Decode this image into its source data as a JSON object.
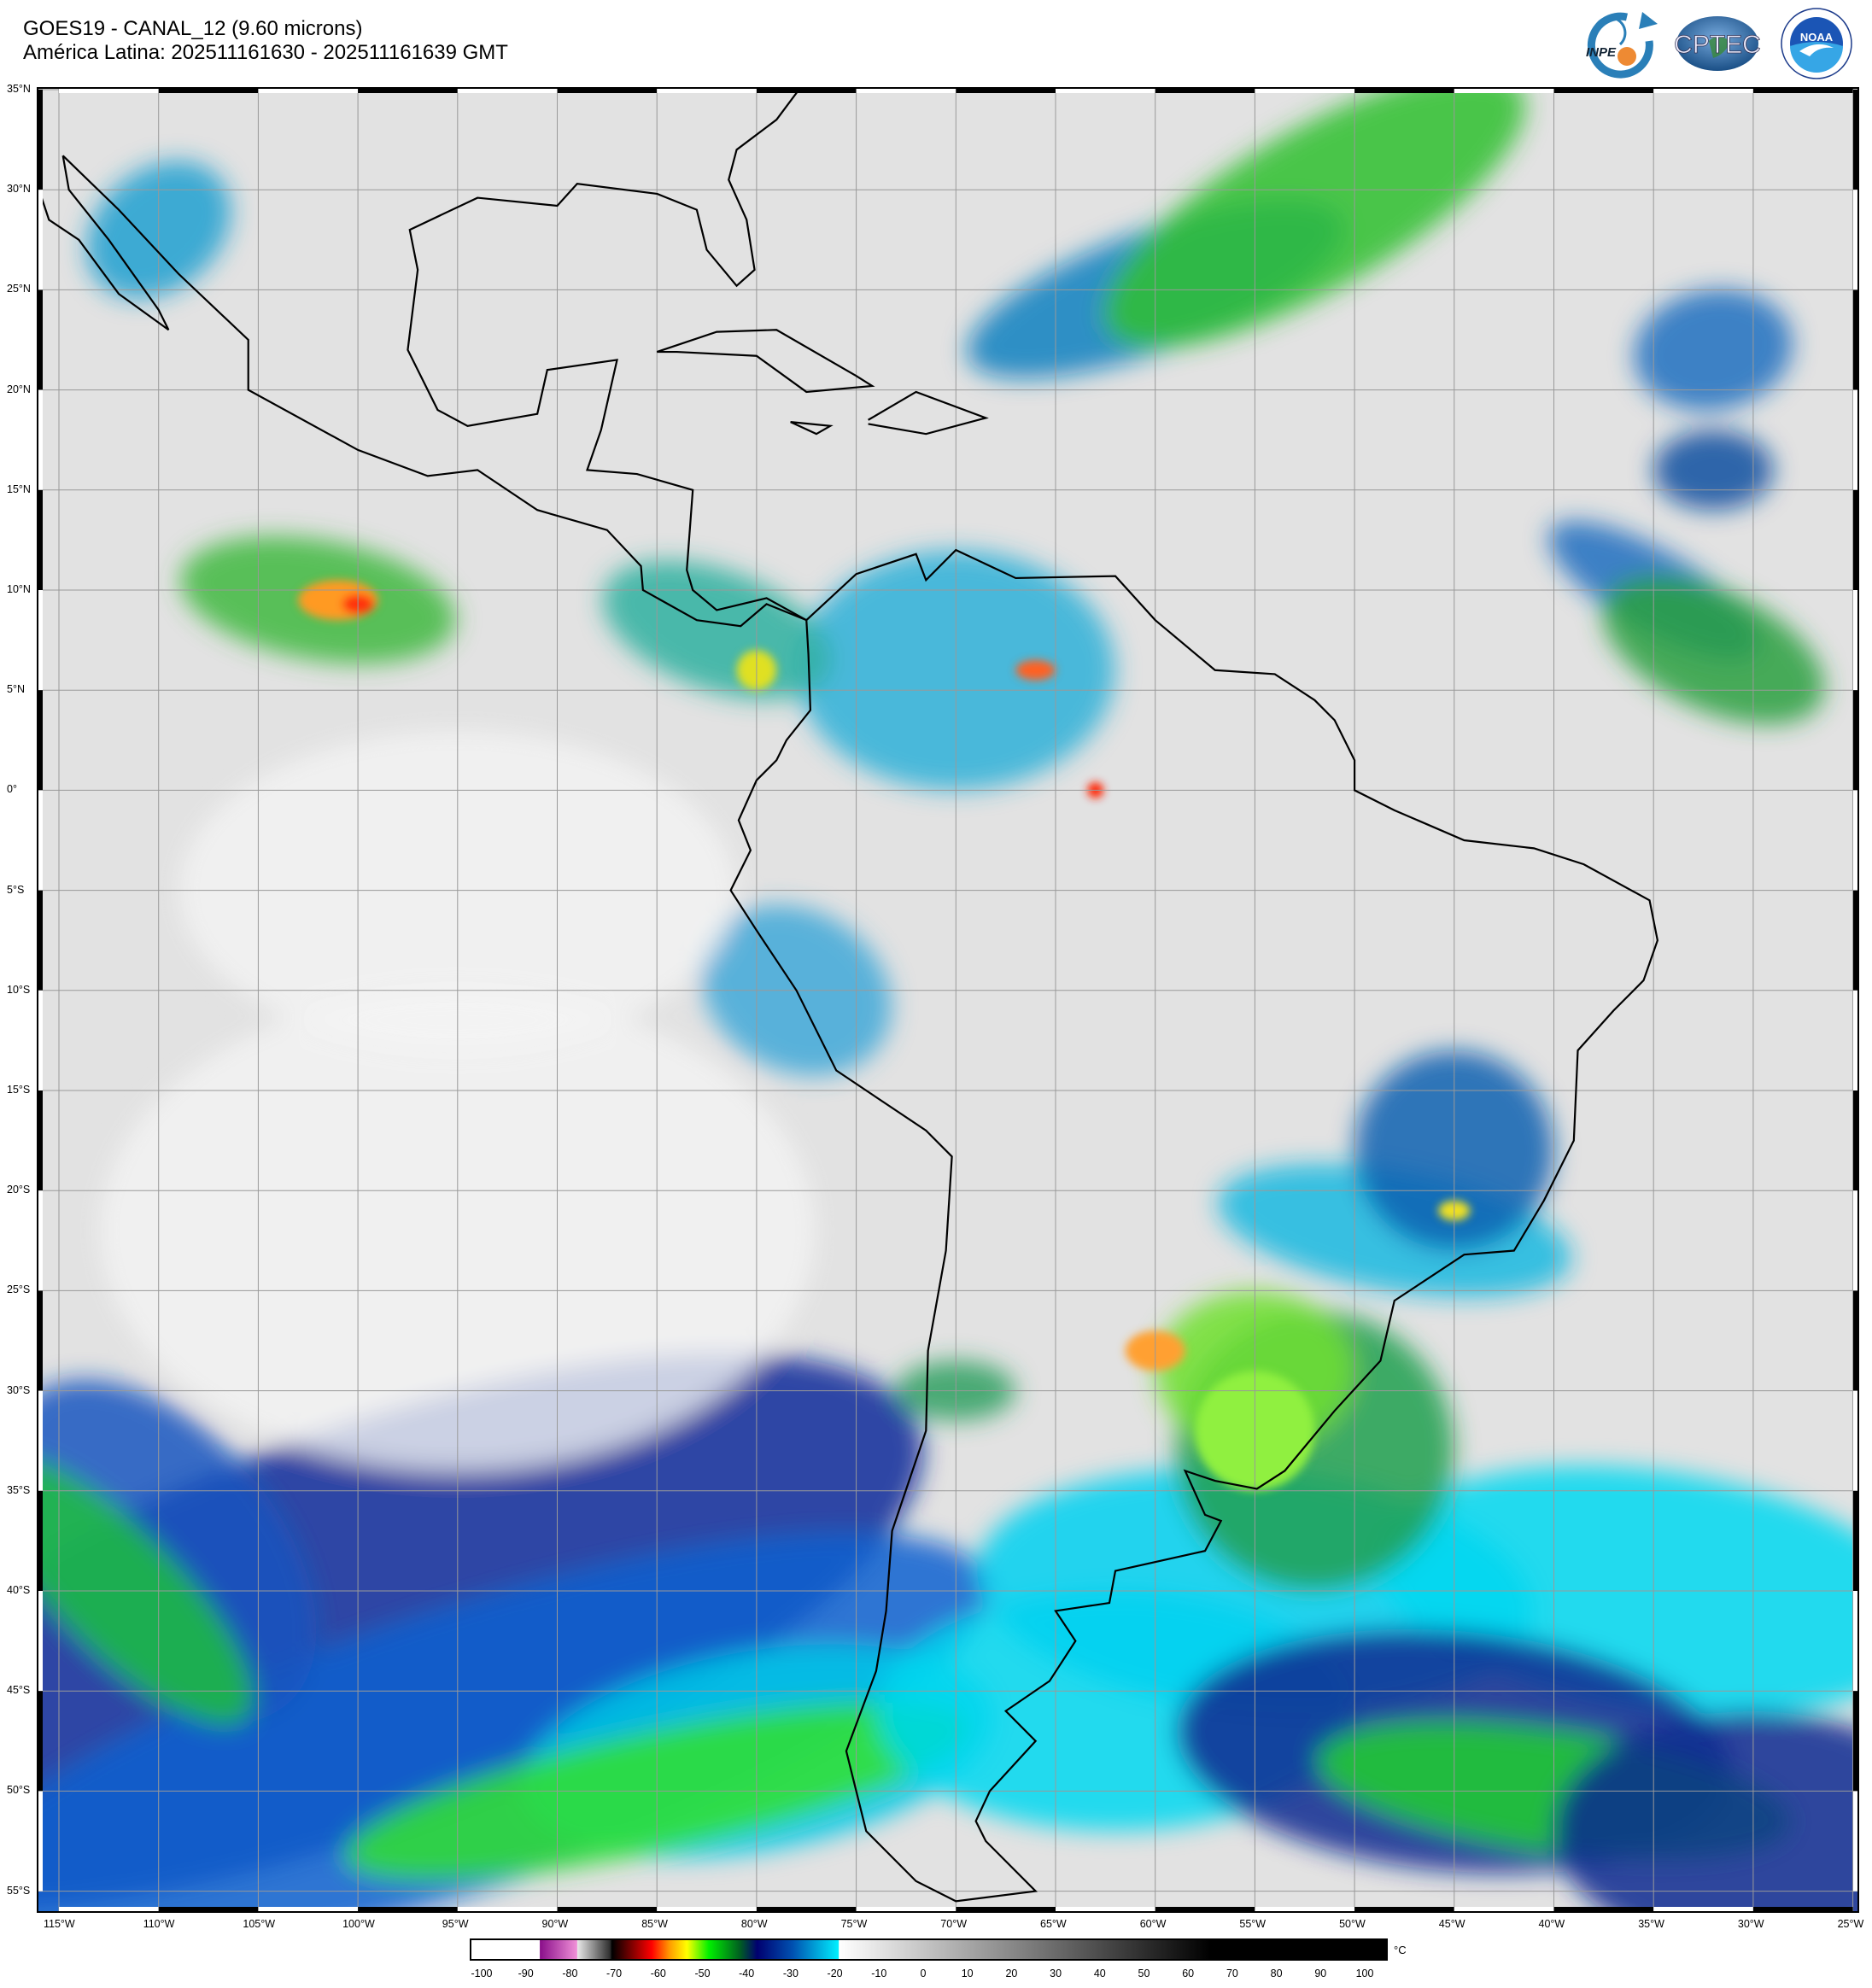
{
  "header": {
    "title_line1": "GOES19 - CANAL_12 (9.60 microns)",
    "title_line2": "América Latina: 202511161630 - 202511161639 GMT"
  },
  "logos": [
    {
      "name": "INPE",
      "text": "INPE"
    },
    {
      "name": "CPTEC",
      "text": "CPTEC"
    },
    {
      "name": "NOAA",
      "text": "NOAA"
    }
  ],
  "map": {
    "projection": "cylindrical",
    "lon_range": [
      "116W",
      "25W"
    ],
    "lat_range": [
      "35N",
      "56S"
    ],
    "grid": true,
    "lat_labels": [
      "35°N",
      "30°N",
      "25°N",
      "20°N",
      "15°N",
      "10°N",
      "5°N",
      "0°",
      "5°S",
      "10°S",
      "15°S",
      "20°S",
      "25°S",
      "30°S",
      "35°S",
      "40°S",
      "45°S",
      "50°S",
      "55°S"
    ],
    "lon_labels": [
      "115°W",
      "110°W",
      "105°W",
      "100°W",
      "95°W",
      "90°W",
      "85°W",
      "80°W",
      "75°W",
      "70°W",
      "65°W",
      "60°W",
      "55°W",
      "50°W",
      "45°W",
      "40°W",
      "35°W",
      "30°W",
      "25°W"
    ]
  },
  "colorbar": {
    "unit": "°C",
    "ticks": [
      "-100",
      "-90",
      "-80",
      "-70",
      "-60",
      "-50",
      "-40",
      "-30",
      "-20",
      "-10",
      "0",
      "10",
      "20",
      "30",
      "40",
      "50",
      "60",
      "70",
      "80",
      "90",
      "100"
    ],
    "colors": {
      "white": "#ffffff",
      "purple": "#8a0f8a",
      "pink": "#f080d0",
      "red": "#ff0000",
      "orange": "#ff9900",
      "yellow": "#ffff00",
      "green": "#00e000",
      "navy": "#000070",
      "blue": "#0040c0",
      "cyan": "#00e8f8",
      "black": "#000000"
    }
  }
}
